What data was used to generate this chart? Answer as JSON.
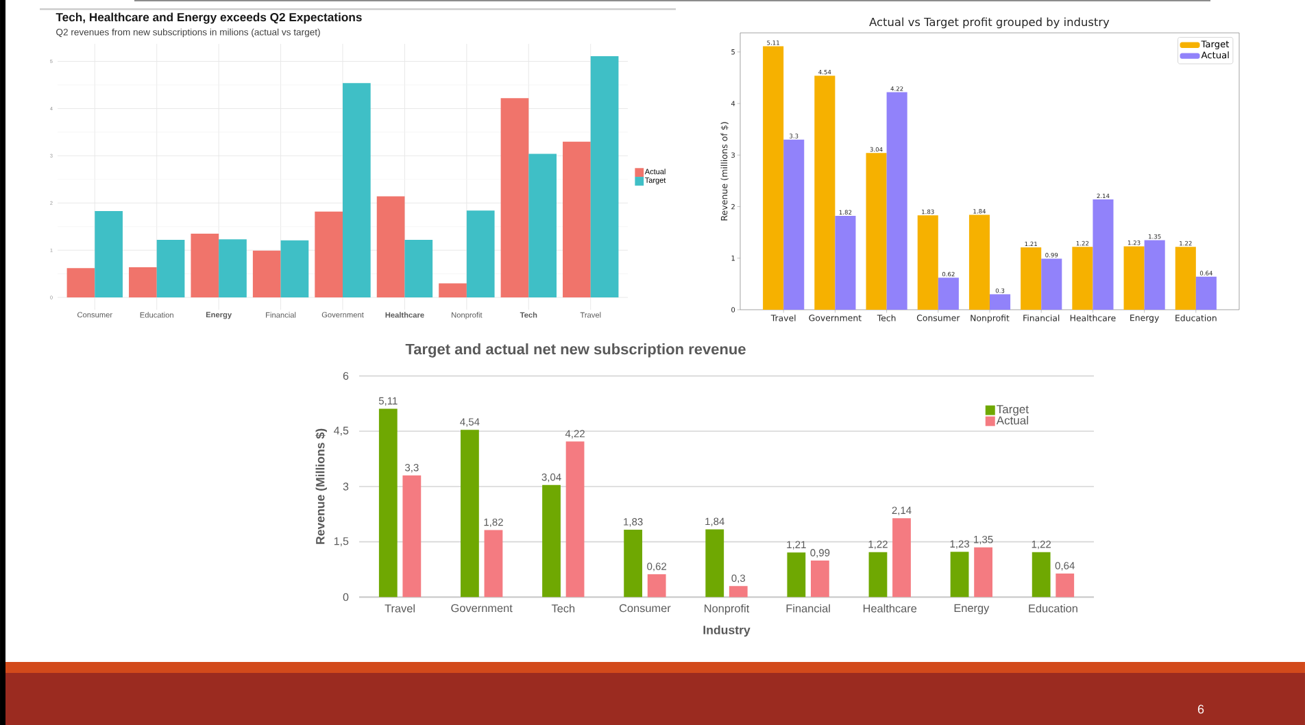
{
  "chart_data": [
    {
      "type": "bar",
      "title": "Tech, Healthcare and Energy exceeds Q2 Expectations",
      "subtitle": "Q2 revenues from new subscriptions in milions (actual vs target)",
      "categories": [
        "Consumer",
        "Education",
        "**Energy**",
        "Financial",
        "Government",
        "**Healthcare**",
        "Nonprofit",
        "**Tech**",
        "Travel"
      ],
      "series": [
        {
          "name": "Actual",
          "color": "#f0746b",
          "values": [
            0.62,
            0.64,
            1.35,
            0.99,
            1.82,
            2.14,
            0.3,
            4.22,
            3.3
          ]
        },
        {
          "name": "Target",
          "color": "#3fbfc6",
          "values": [
            1.83,
            1.22,
            1.23,
            1.21,
            4.54,
            1.22,
            1.84,
            3.04,
            5.11
          ]
        }
      ],
      "ylim": [
        -0.26,
        5.37
      ],
      "yticks": [
        0,
        1,
        2,
        3,
        4,
        5
      ],
      "grid": true,
      "legend": "right"
    },
    {
      "type": "bar",
      "title": "Actual vs Target profit grouped by industry",
      "ylabel": "Revenue (millions of $)",
      "categories": [
        "Travel",
        "Government",
        "Tech",
        "Consumer",
        "Nonprofit",
        "Financial",
        "Healthcare",
        "Energy",
        "Education"
      ],
      "series": [
        {
          "name": "Target",
          "color": "#f6b100",
          "values": [
            5.11,
            4.54,
            3.04,
            1.83,
            1.84,
            1.21,
            1.22,
            1.23,
            1.22
          ]
        },
        {
          "name": "Actual",
          "color": "#9182fa",
          "values": [
            3.3,
            1.82,
            4.22,
            0.62,
            0.3,
            0.99,
            2.14,
            1.35,
            0.64
          ]
        }
      ],
      "ylim": [
        0,
        5.37
      ],
      "yticks": [
        0,
        1,
        2,
        3,
        4,
        5
      ],
      "data_labels": true,
      "legend": "top right"
    },
    {
      "type": "bar",
      "title": "Target and actual net new subscription revenue",
      "xlabel": "Industry",
      "ylabel": "Revenue (Millions $)",
      "categories": [
        "Travel",
        "Government",
        "Tech",
        "Consumer",
        "Nonprofit",
        "Financial",
        "Healthcare",
        "Energy",
        "Education"
      ],
      "series": [
        {
          "name": "Target",
          "color": "#6fa802",
          "values": [
            5.11,
            4.54,
            3.04,
            1.83,
            1.84,
            1.21,
            1.22,
            1.23,
            1.22
          ],
          "value_labels": [
            "5,11",
            "4,54",
            "3,04",
            "1,83",
            "1,84",
            "1,21",
            "1,22",
            "1,23",
            "1,22"
          ]
        },
        {
          "name": "Actual",
          "color": "#f47b81",
          "values": [
            3.3,
            1.82,
            4.22,
            0.62,
            0.3,
            0.99,
            2.14,
            1.35,
            0.64
          ],
          "value_labels": [
            "3,3",
            "1,82",
            "4,22",
            "0,62",
            "0,3",
            "0,99",
            "2,14",
            "1,35",
            "0,64"
          ]
        }
      ],
      "ylim": [
        0,
        6
      ],
      "yticks": [
        0,
        {
          "value": 1.5,
          "label": "1,5"
        },
        3,
        {
          "value": 4.5,
          "label": "4,5"
        },
        6
      ],
      "grid": "y",
      "legend": "top right",
      "annotations": [
        "6"
      ]
    }
  ]
}
